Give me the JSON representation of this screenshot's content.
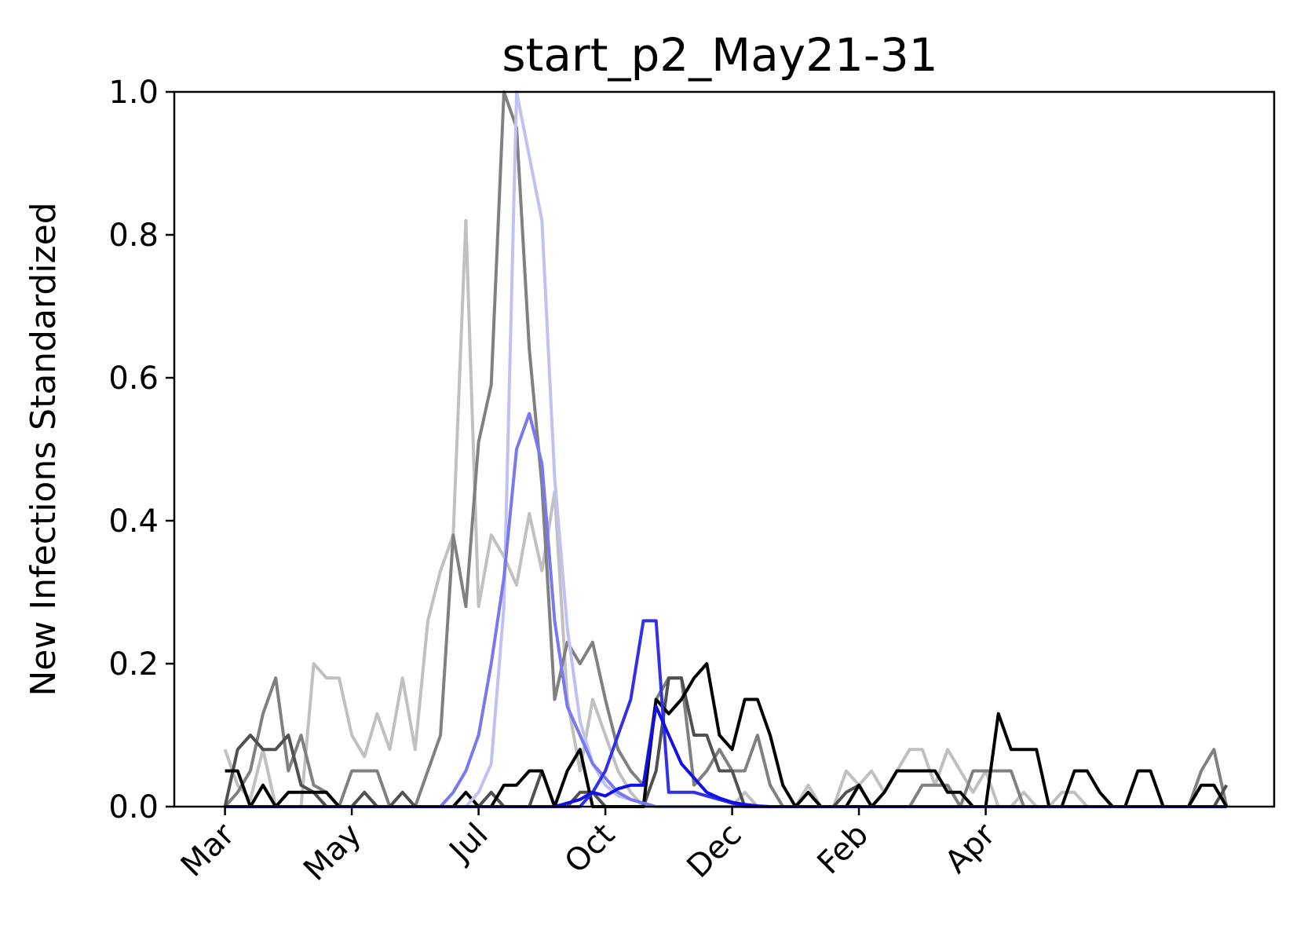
{
  "chart_data": {
    "type": "line",
    "title": "start_p2_May21-31",
    "xlabel": "",
    "ylabel": "New Infections Standardized",
    "ylim": [
      0,
      1.0
    ],
    "y_ticks": [
      "0.0",
      "0.2",
      "0.4",
      "0.6",
      "0.8",
      "1.0"
    ],
    "x_ticks": [
      {
        "label": "Mar",
        "week": 0
      },
      {
        "label": "May",
        "week": 8
      },
      {
        "label": "Jul",
        "week": 16
      },
      {
        "label": "Oct",
        "week": 24
      },
      {
        "label": "Dec",
        "week": 32
      },
      {
        "label": "Feb",
        "week": 40
      },
      {
        "label": "Apr",
        "week": 48
      }
    ],
    "x_range_weeks": [
      -3.2,
      66.2
    ],
    "grid": false,
    "legend": "none",
    "series": [
      {
        "color": "#c0c0c0",
        "values": [
          0.08,
          0.03,
          0.01,
          0.08,
          0.0,
          0.0,
          0.0,
          0.2,
          0.18,
          0.18,
          0.1,
          0.07,
          0.13,
          0.08,
          0.18,
          0.08,
          0.26,
          0.33,
          0.38,
          0.82,
          0.28,
          0.38,
          0.35,
          0.31,
          0.41,
          0.33,
          0.44,
          0.15,
          0.05,
          0.15,
          0.1,
          0.05,
          0.02,
          0.0,
          0.0,
          0.0,
          0.0,
          0.0,
          0.0,
          0.0,
          0.0,
          0.02,
          0.0,
          0.0,
          0.0,
          0.0,
          0.03,
          0.0,
          0.0,
          0.05,
          0.03,
          0.05,
          0.02,
          0.05,
          0.08,
          0.08,
          0.03,
          0.08,
          0.05,
          0.02,
          0.05,
          0.0,
          0.0,
          0.02,
          0.0,
          0.0,
          0.02,
          0.02,
          0.0,
          0.0,
          0.0,
          0.0,
          0.0,
          0.0,
          0.0,
          0.0,
          0.0,
          0.0,
          0.0,
          0.0
        ]
      },
      {
        "color": "#808080",
        "values": [
          0.0,
          0.02,
          0.05,
          0.13,
          0.18,
          0.05,
          0.1,
          0.03,
          0.02,
          0.0,
          0.05,
          0.05,
          0.05,
          0.0,
          0.0,
          0.0,
          0.05,
          0.1,
          0.38,
          0.28,
          0.51,
          0.59,
          1.0,
          0.95,
          0.64,
          0.45,
          0.15,
          0.23,
          0.2,
          0.23,
          0.15,
          0.08,
          0.05,
          0.03,
          0.15,
          0.18,
          0.18,
          0.03,
          0.05,
          0.08,
          0.05,
          0.05,
          0.1,
          0.03,
          0.0,
          0.0,
          0.0,
          0.0,
          0.0,
          0.0,
          0.03,
          0.0,
          0.0,
          0.0,
          0.0,
          0.03,
          0.03,
          0.03,
          0.0,
          0.05,
          0.05,
          0.05,
          0.05,
          0.0,
          0.0,
          0.0,
          0.0,
          0.0,
          0.0,
          0.0,
          0.0,
          0.0,
          0.0,
          0.0,
          0.0,
          0.0,
          0.0,
          0.05,
          0.08,
          0.0
        ]
      },
      {
        "color": "#505050",
        "values": [
          0.0,
          0.08,
          0.1,
          0.08,
          0.08,
          0.1,
          0.03,
          0.02,
          0.0,
          0.0,
          0.0,
          0.02,
          0.0,
          0.0,
          0.02,
          0.0,
          0.0,
          0.0,
          0.0,
          0.0,
          0.0,
          0.02,
          0.0,
          0.0,
          0.0,
          0.05,
          0.0,
          0.0,
          0.02,
          0.02,
          0.0,
          0.0,
          0.0,
          0.0,
          0.05,
          0.18,
          0.18,
          0.1,
          0.1,
          0.05,
          0.05,
          0.0,
          0.0,
          0.0,
          0.0,
          0.0,
          0.0,
          0.0,
          0.0,
          0.02,
          0.03,
          0.0,
          0.0,
          0.0,
          0.0,
          0.0,
          0.0,
          0.0,
          0.0,
          0.0,
          0.0,
          0.0,
          0.0,
          0.0,
          0.0,
          0.0,
          0.0,
          0.0,
          0.0,
          0.0,
          0.0,
          0.0,
          0.0,
          0.0,
          0.0,
          0.0,
          0.0,
          0.0,
          0.0,
          0.03
        ]
      },
      {
        "color": "#000000",
        "values": [
          0.05,
          0.05,
          0.0,
          0.03,
          0.0,
          0.02,
          0.02,
          0.02,
          0.02,
          0.0,
          0.0,
          0.0,
          0.0,
          0.0,
          0.0,
          0.0,
          0.0,
          0.0,
          0.0,
          0.02,
          0.0,
          0.0,
          0.03,
          0.03,
          0.05,
          0.05,
          0.0,
          0.05,
          0.08,
          0.0,
          0.0,
          0.0,
          0.0,
          0.0,
          0.15,
          0.13,
          0.15,
          0.18,
          0.2,
          0.1,
          0.08,
          0.15,
          0.15,
          0.1,
          0.03,
          0.0,
          0.02,
          0.0,
          0.0,
          0.0,
          0.03,
          0.0,
          0.02,
          0.05,
          0.05,
          0.05,
          0.05,
          0.02,
          0.02,
          0.0,
          0.0,
          0.13,
          0.08,
          0.08,
          0.08,
          0.0,
          0.0,
          0.05,
          0.05,
          0.02,
          0.0,
          0.0,
          0.05,
          0.05,
          0.0,
          0.0,
          0.0,
          0.03,
          0.03,
          0.0
        ]
      },
      {
        "color": "#c0c0f5",
        "values": [
          0.0,
          0.0,
          0.0,
          0.0,
          0.0,
          0.0,
          0.0,
          0.0,
          0.0,
          0.0,
          0.0,
          0.0,
          0.0,
          0.0,
          0.0,
          0.0,
          0.0,
          0.0,
          0.0,
          0.0,
          0.02,
          0.06,
          0.28,
          1.0,
          0.91,
          0.82,
          0.46,
          0.25,
          0.12,
          0.06,
          0.03,
          0.015,
          0.01,
          0.005,
          0.0,
          0.0,
          0.0,
          0.0,
          0.0,
          0.0,
          0.0,
          0.0,
          0.0,
          0.0,
          0.0,
          0.0,
          0.0,
          0.0,
          0.0,
          0.0,
          0.0,
          0.0,
          0.0,
          0.0,
          0.0,
          0.0,
          0.0,
          0.0,
          0.0,
          0.0,
          0.0,
          0.0,
          0.0,
          0.0,
          0.0,
          0.0,
          0.0,
          0.0,
          0.0,
          0.0,
          0.0,
          0.0,
          0.0,
          0.0,
          0.0,
          0.0,
          0.0,
          0.0,
          0.0,
          0.0
        ]
      },
      {
        "color": "#7878ef",
        "values": [
          0.0,
          0.0,
          0.0,
          0.0,
          0.0,
          0.0,
          0.0,
          0.0,
          0.0,
          0.0,
          0.0,
          0.0,
          0.0,
          0.0,
          0.0,
          0.0,
          0.0,
          0.0,
          0.02,
          0.05,
          0.1,
          0.2,
          0.32,
          0.5,
          0.55,
          0.48,
          0.26,
          0.14,
          0.1,
          0.06,
          0.04,
          0.02,
          0.01,
          0.005,
          0.0,
          0.0,
          0.0,
          0.0,
          0.0,
          0.0,
          0.0,
          0.0,
          0.0,
          0.0,
          0.0,
          0.0,
          0.0,
          0.0,
          0.0,
          0.0,
          0.0,
          0.0,
          0.0,
          0.0,
          0.0,
          0.0,
          0.0,
          0.0,
          0.0,
          0.0,
          0.0,
          0.0,
          0.0,
          0.0,
          0.0,
          0.0,
          0.0,
          0.0,
          0.0,
          0.0,
          0.0,
          0.0,
          0.0,
          0.0,
          0.0,
          0.0,
          0.0,
          0.0,
          0.0,
          0.0
        ]
      },
      {
        "color": "#3030e8",
        "values": [
          0.0,
          0.0,
          0.0,
          0.0,
          0.0,
          0.0,
          0.0,
          0.0,
          0.0,
          0.0,
          0.0,
          0.0,
          0.0,
          0.0,
          0.0,
          0.0,
          0.0,
          0.0,
          0.0,
          0.0,
          0.0,
          0.0,
          0.0,
          0.0,
          0.0,
          0.0,
          0.0,
          0.0,
          0.0,
          0.02,
          0.05,
          0.1,
          0.15,
          0.26,
          0.26,
          0.02,
          0.02,
          0.02,
          0.015,
          0.01,
          0.005,
          0.0,
          0.0,
          0.0,
          0.0,
          0.0,
          0.0,
          0.0,
          0.0,
          0.0,
          0.0,
          0.0,
          0.0,
          0.0,
          0.0,
          0.0,
          0.0,
          0.0,
          0.0,
          0.0,
          0.0,
          0.0,
          0.0,
          0.0,
          0.0,
          0.0,
          0.0,
          0.0,
          0.0,
          0.0,
          0.0,
          0.0,
          0.0,
          0.0,
          0.0,
          0.0,
          0.0,
          0.0,
          0.0,
          0.0
        ]
      },
      {
        "color": "#0f0fe6",
        "values": [
          0.0,
          0.0,
          0.0,
          0.0,
          0.0,
          0.0,
          0.0,
          0.0,
          0.0,
          0.0,
          0.0,
          0.0,
          0.0,
          0.0,
          0.0,
          0.0,
          0.0,
          0.0,
          0.0,
          0.0,
          0.0,
          0.0,
          0.0,
          0.0,
          0.0,
          0.0,
          0.0,
          0.005,
          0.01,
          0.02,
          0.015,
          0.025,
          0.03,
          0.03,
          0.14,
          0.1,
          0.06,
          0.04,
          0.02,
          0.012,
          0.006,
          0.003,
          0.001,
          0.0,
          0.0,
          0.0,
          0.0,
          0.0,
          0.0,
          0.0,
          0.0,
          0.0,
          0.0,
          0.0,
          0.0,
          0.0,
          0.0,
          0.0,
          0.0,
          0.0,
          0.0,
          0.0,
          0.0,
          0.0,
          0.0,
          0.0,
          0.0,
          0.0,
          0.0,
          0.0,
          0.0,
          0.0,
          0.0,
          0.0,
          0.0,
          0.0,
          0.0,
          0.0,
          0.0,
          0.0
        ]
      }
    ]
  }
}
